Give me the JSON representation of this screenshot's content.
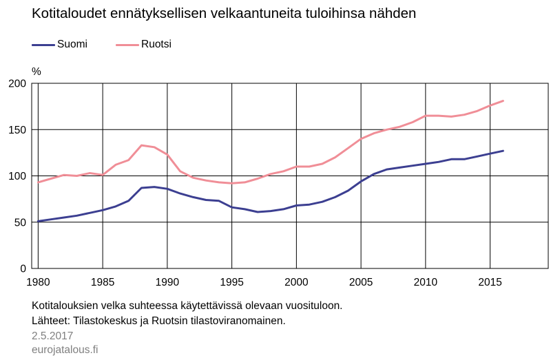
{
  "title": "Kotitaloudet ennätyksellisen velkaantuneita tuloihinsa nähden",
  "unit": "%",
  "colors": {
    "Suomi": "#3c3f91",
    "Ruotsi": "#f08e97"
  },
  "footer": {
    "note": "Kotitalouksien velka suhteessa käytettävissä olevaan vuosituloon.",
    "sources": "Lähteet: Tilastokeskus ja Ruotsin tilastoviranomainen.",
    "date": "2.5.2017",
    "site": "eurojatalous.fi"
  },
  "chart_data": {
    "type": "line",
    "title": "Kotitaloudet ennätyksellisen velkaantuneita tuloihinsa nähden",
    "ylabel": "%",
    "xlabel": "",
    "xlim": [
      1979.5,
      2019.5
    ],
    "ylim": [
      0,
      200
    ],
    "xticks": [
      1980,
      1985,
      1990,
      1995,
      2000,
      2005,
      2010,
      2015
    ],
    "yticks": [
      0,
      50,
      100,
      150,
      200
    ],
    "grid": true,
    "legend": "top-left",
    "x": [
      1980,
      1981,
      1982,
      1983,
      1984,
      1985,
      1986,
      1987,
      1988,
      1989,
      1990,
      1991,
      1992,
      1993,
      1994,
      1995,
      1996,
      1997,
      1998,
      1999,
      2000,
      2001,
      2002,
      2003,
      2004,
      2005,
      2006,
      2007,
      2008,
      2009,
      2010,
      2011,
      2012,
      2013,
      2014,
      2015,
      2016
    ],
    "series": [
      {
        "name": "Suomi",
        "values": [
          51,
          53,
          55,
          57,
          60,
          63,
          67,
          73,
          87,
          88,
          86,
          81,
          77,
          74,
          73,
          66,
          64,
          61,
          62,
          64,
          68,
          69,
          72,
          77,
          84,
          94,
          102,
          107,
          109,
          111,
          113,
          115,
          118,
          118,
          121,
          124,
          127
        ]
      },
      {
        "name": "Ruotsi",
        "values": [
          93,
          97,
          101,
          100,
          103,
          101,
          112,
          117,
          133,
          131,
          123,
          105,
          98,
          95,
          93,
          92,
          93,
          97,
          102,
          105,
          110,
          110,
          113,
          120,
          130,
          140,
          146,
          150,
          153,
          158,
          165,
          165,
          164,
          166,
          170,
          176,
          181
        ]
      }
    ]
  }
}
